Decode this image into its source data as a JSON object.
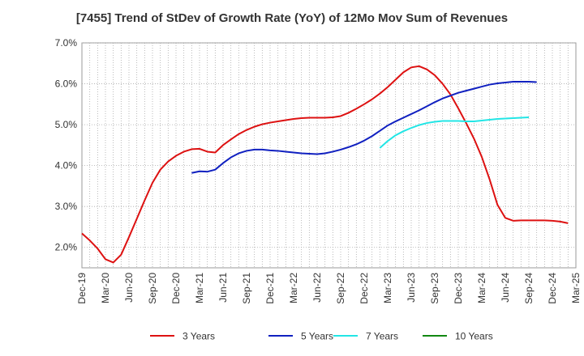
{
  "chart_data": {
    "type": "line",
    "title": "[7455]  Trend of StDev of Growth Rate (YoY) of 12Mo Mov Sum of Revenues",
    "xlabel": "",
    "ylabel": "",
    "ylim": [
      1.5,
      7.0
    ],
    "y_ticks": [
      2.0,
      3.0,
      4.0,
      5.0,
      6.0,
      7.0
    ],
    "y_tick_labels": [
      "2.0%",
      "3.0%",
      "4.0%",
      "5.0%",
      "6.0%",
      "7.0%"
    ],
    "x_tick_labels": [
      "Dec-19",
      "Mar-20",
      "Jun-20",
      "Sep-20",
      "Dec-20",
      "Mar-21",
      "Jun-21",
      "Sep-21",
      "Dec-21",
      "Mar-22",
      "Jun-22",
      "Sep-22",
      "Dec-22",
      "Mar-23",
      "Jun-23",
      "Sep-23",
      "Dec-23",
      "Mar-24",
      "Jun-24",
      "Sep-24",
      "Dec-24",
      "Mar-25"
    ],
    "x_start": "Dec-19",
    "grid": true,
    "legend_position": "bottom",
    "series": [
      {
        "name": "3 Years",
        "color": "#dd1111",
        "values": [
          2.34,
          2.17,
          1.97,
          1.71,
          1.63,
          1.82,
          2.25,
          2.7,
          3.15,
          3.58,
          3.9,
          4.1,
          4.24,
          4.34,
          4.4,
          4.41,
          4.34,
          4.32,
          4.5,
          4.64,
          4.77,
          4.87,
          4.95,
          5.01,
          5.05,
          5.08,
          5.11,
          5.14,
          5.16,
          5.17,
          5.17,
          5.17,
          5.18,
          5.21,
          5.29,
          5.39,
          5.5,
          5.62,
          5.76,
          5.92,
          6.1,
          6.28,
          6.4,
          6.43,
          6.35,
          6.21,
          6.0,
          5.74,
          5.4,
          5.04,
          4.66,
          4.21,
          3.66,
          3.04,
          2.72,
          2.65,
          2.66,
          2.66,
          2.66,
          2.66,
          2.65,
          2.63,
          2.59
        ]
      },
      {
        "name": "5 Years",
        "color": "#1020c0",
        "values": [
          null,
          null,
          null,
          null,
          null,
          null,
          null,
          null,
          null,
          null,
          null,
          null,
          null,
          null,
          3.82,
          3.86,
          3.85,
          3.9,
          4.06,
          4.2,
          4.3,
          4.36,
          4.39,
          4.39,
          4.37,
          4.36,
          4.34,
          4.32,
          4.3,
          4.29,
          4.28,
          4.3,
          4.34,
          4.39,
          4.45,
          4.52,
          4.61,
          4.72,
          4.85,
          4.98,
          5.08,
          5.17,
          5.26,
          5.35,
          5.45,
          5.55,
          5.64,
          5.71,
          5.78,
          5.83,
          5.88,
          5.93,
          5.98,
          6.01,
          6.03,
          6.05,
          6.05,
          6.05,
          6.04
        ]
      },
      {
        "name": "7 Years",
        "color": "#22e5e5",
        "values": [
          null,
          null,
          null,
          null,
          null,
          null,
          null,
          null,
          null,
          null,
          null,
          null,
          null,
          null,
          null,
          null,
          null,
          null,
          null,
          null,
          null,
          null,
          null,
          null,
          null,
          null,
          null,
          null,
          null,
          null,
          null,
          null,
          null,
          null,
          null,
          null,
          null,
          null,
          4.43,
          4.6,
          4.74,
          4.84,
          4.92,
          4.99,
          5.04,
          5.07,
          5.09,
          5.09,
          5.09,
          5.08,
          5.08,
          5.1,
          5.12,
          5.14,
          5.15,
          5.16,
          5.17,
          5.18
        ]
      },
      {
        "name": "10 Years",
        "color": "#118811",
        "values": []
      }
    ]
  }
}
